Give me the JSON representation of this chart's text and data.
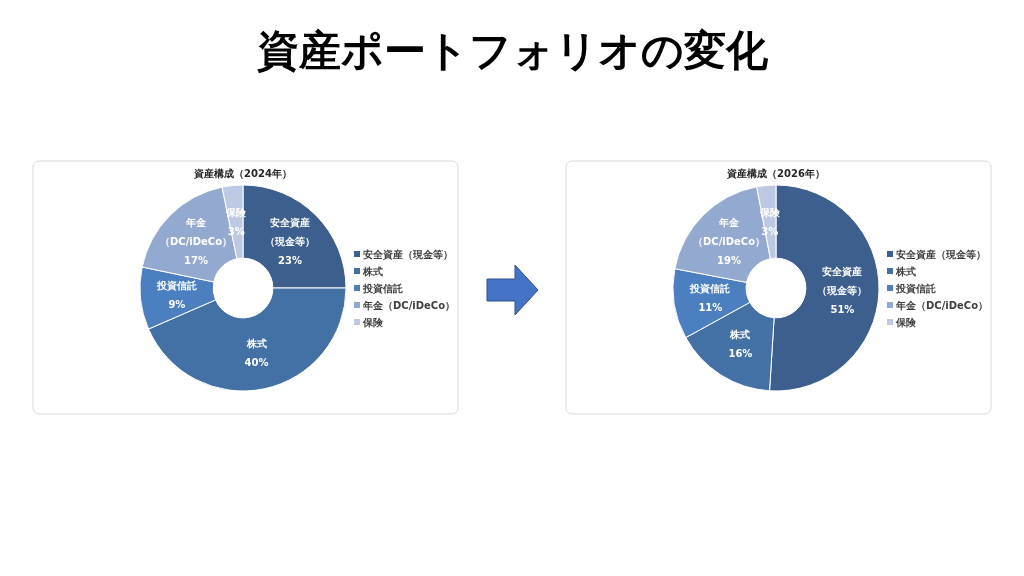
{
  "chart_data": [
    {
      "type": "other",
      "title": "資産ポートフォリオの変化"
    },
    {
      "type": "donut",
      "title": "資産構成（2024年）",
      "categories": [
        "安全資産（現金等）",
        "株式",
        "投資信託",
        "年金（DC/iDeCo）",
        "保険"
      ],
      "values": [
        23,
        40,
        9,
        17,
        3
      ],
      "value_labels": [
        "23%",
        "40%",
        "9%",
        "17%",
        "3%"
      ],
      "colors": [
        "#3d5f8d",
        "#4371a6",
        "#4b7fbf",
        "#94a9d0",
        "#bdc9e2"
      ],
      "legend": "right"
    },
    {
      "type": "donut",
      "title": "資産構成（2026年）",
      "categories": [
        "安全資産（現金等）",
        "株式",
        "投資信託",
        "年金（DC/iDeCo）",
        "保険"
      ],
      "values": [
        51,
        16,
        11,
        19,
        3
      ],
      "value_labels": [
        "51%",
        "16%",
        "11%",
        "19%",
        "3%"
      ],
      "colors": [
        "#3d5f8d",
        "#4371a6",
        "#4b7fbf",
        "#94a9d0",
        "#bdc9e2"
      ],
      "legend": "right"
    }
  ]
}
